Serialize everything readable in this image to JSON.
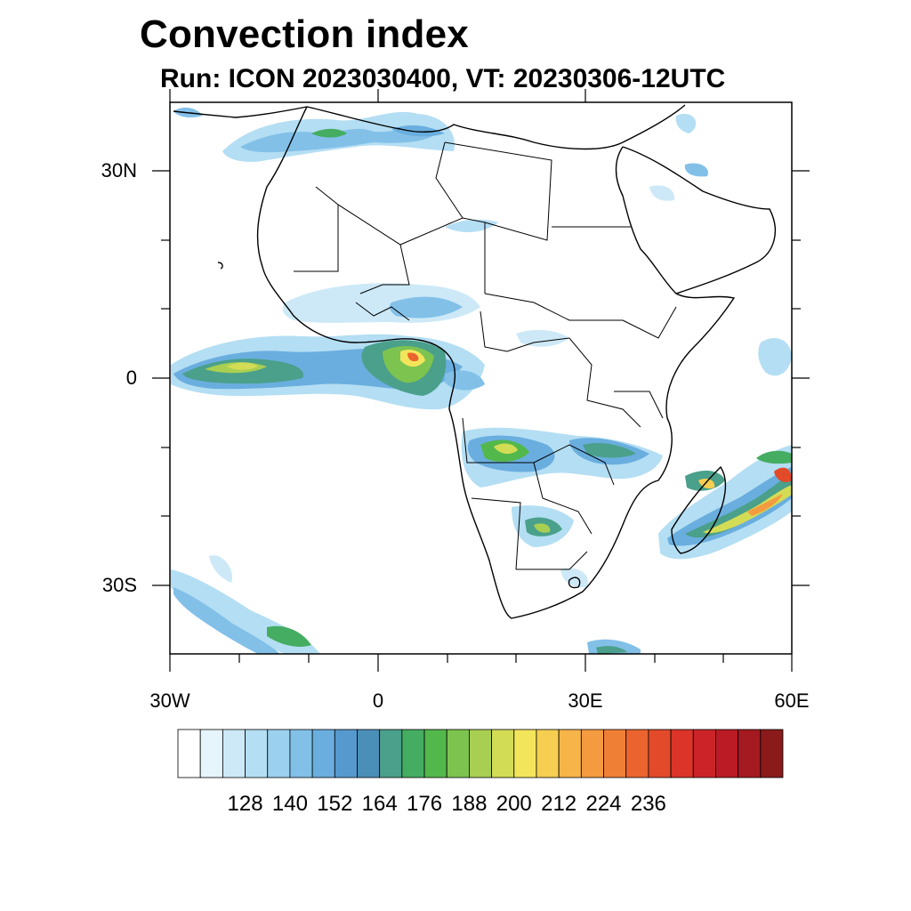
{
  "title": "Convection index",
  "subtitle": "Run: ICON 2023030400,  VT: 20230306-12UTC",
  "axes": {
    "lat_labels": [
      "30N",
      "0",
      "30S"
    ],
    "lon_labels": [
      "30W",
      "0",
      "30E",
      "60E"
    ]
  },
  "colorbar": {
    "labels": [
      "128",
      "140",
      "152",
      "164",
      "176",
      "188",
      "200",
      "212",
      "224",
      "236"
    ],
    "colors": [
      "#ffffff",
      "#e6f4fb",
      "#cde9f7",
      "#b4def3",
      "#9bd1ef",
      "#82c0e8",
      "#6aaedf",
      "#5599cf",
      "#4a8fb8",
      "#4aa08a",
      "#45ad62",
      "#53b84b",
      "#7dc350",
      "#a9cf52",
      "#d3dc55",
      "#f3e55b",
      "#f6cf52",
      "#f7b549",
      "#f49b40",
      "#f07f36",
      "#eb642f",
      "#e34a2a",
      "#dc3429",
      "#cc2328",
      "#bb1b25",
      "#a51a20",
      "#8b1a1a"
    ]
  }
}
